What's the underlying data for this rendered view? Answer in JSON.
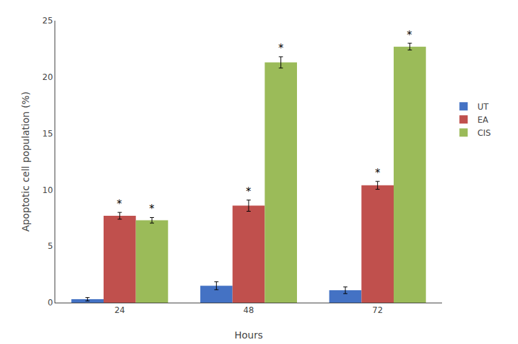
{
  "chart_data": {
    "type": "bar",
    "xlabel": "Hours",
    "ylabel": "Apoptotic cell population (%)",
    "categories": [
      "24",
      "48",
      "72"
    ],
    "series": [
      {
        "name": "UT",
        "color": "#4472C4",
        "values": [
          0.3,
          1.5,
          1.1
        ],
        "errors": [
          0.15,
          0.35,
          0.3
        ]
      },
      {
        "name": "EA",
        "color": "#C0504D",
        "values": [
          7.7,
          8.6,
          10.4
        ],
        "errors": [
          0.3,
          0.5,
          0.35
        ],
        "annotations": [
          "*",
          "*",
          "*"
        ]
      },
      {
        "name": "CIS",
        "color": "#9BBB59",
        "values": [
          7.3,
          21.3,
          22.7
        ],
        "errors": [
          0.25,
          0.5,
          0.3
        ],
        "annotations": [
          "*",
          "*",
          "*"
        ]
      }
    ],
    "ylim": [
      0,
      25
    ],
    "yticks": [
      0,
      5,
      10,
      15,
      20,
      25
    ],
    "grid": false,
    "legend": "right"
  }
}
